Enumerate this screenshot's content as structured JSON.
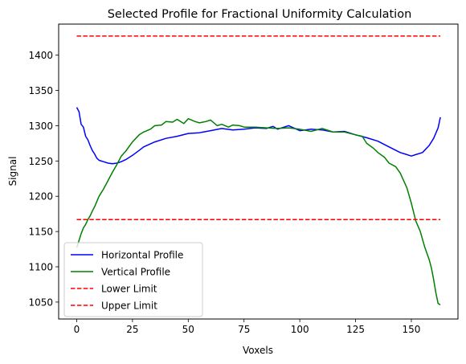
{
  "chart_data": {
    "type": "line",
    "title": "Selected Profile for Fractional Uniformity Calculation",
    "xlabel": "Voxels",
    "ylabel": "Signal",
    "xlim": [
      -8.1,
      170.9
    ],
    "ylim": [
      1026,
      1444
    ],
    "xticks": [
      0,
      25,
      50,
      75,
      100,
      125,
      150
    ],
    "yticks": [
      1050,
      1100,
      1150,
      1200,
      1250,
      1300,
      1350,
      1400
    ],
    "grid": false,
    "legend_position": "lower-left",
    "series": [
      {
        "name": "Horizontal Profile",
        "color": "#0000ff",
        "style": "solid",
        "x": [
          0,
          1,
          2,
          3,
          4,
          5,
          6,
          7,
          8,
          9,
          10,
          12,
          14,
          16,
          18,
          20,
          22,
          25,
          28,
          30,
          35,
          40,
          45,
          50,
          55,
          60,
          65,
          70,
          75,
          80,
          85,
          88,
          90,
          95,
          100,
          105,
          110,
          115,
          120,
          125,
          130,
          135,
          140,
          145,
          148,
          150,
          152,
          155,
          158,
          160,
          162,
          163
        ],
        "y": [
          1326,
          1320,
          1302,
          1298,
          1285,
          1280,
          1272,
          1265,
          1260,
          1254,
          1251,
          1249,
          1247,
          1246,
          1247,
          1249,
          1252,
          1258,
          1265,
          1270,
          1277,
          1282,
          1285,
          1289,
          1290,
          1293,
          1296,
          1294,
          1295,
          1297,
          1296,
          1299,
          1295,
          1300,
          1293,
          1295,
          1294,
          1291,
          1292,
          1287,
          1283,
          1278,
          1270,
          1262,
          1259,
          1257,
          1259,
          1262,
          1272,
          1282,
          1297,
          1312
        ]
      },
      {
        "name": "Vertical Profile",
        "color": "#008000",
        "style": "solid",
        "x": [
          0,
          1,
          2,
          3,
          4,
          5,
          6,
          7,
          8,
          10,
          12,
          14,
          16,
          18,
          20,
          22,
          25,
          28,
          30,
          33,
          35,
          38,
          40,
          43,
          45,
          48,
          50,
          53,
          55,
          58,
          60,
          63,
          65,
          68,
          70,
          73,
          75,
          80,
          85,
          90,
          95,
          100,
          105,
          110,
          115,
          120,
          125,
          128,
          130,
          133,
          135,
          138,
          140,
          143,
          145,
          148,
          150,
          152,
          154,
          156,
          158,
          159,
          160,
          161,
          162,
          163
        ],
        "y": [
          1127,
          1137,
          1147,
          1155,
          1160,
          1167,
          1172,
          1179,
          1185,
          1200,
          1210,
          1222,
          1234,
          1245,
          1257,
          1264,
          1277,
          1287,
          1291,
          1295,
          1300,
          1301,
          1306,
          1305,
          1309,
          1303,
          1310,
          1306,
          1304,
          1306,
          1308,
          1300,
          1302,
          1298,
          1301,
          1300,
          1298,
          1298,
          1297,
          1296,
          1297,
          1295,
          1292,
          1296,
          1291,
          1291,
          1287,
          1285,
          1275,
          1268,
          1262,
          1255,
          1247,
          1242,
          1233,
          1212,
          1190,
          1165,
          1150,
          1128,
          1110,
          1098,
          1082,
          1063,
          1048,
          1046
        ]
      },
      {
        "name": "Lower Limit",
        "color": "#ff0000",
        "style": "dashed",
        "x": [
          0,
          163
        ],
        "y": [
          1167,
          1167
        ]
      },
      {
        "name": "Upper Limit",
        "color": "#ff0000",
        "style": "dashed",
        "x": [
          0,
          163
        ],
        "y": [
          1427,
          1427
        ]
      }
    ]
  }
}
